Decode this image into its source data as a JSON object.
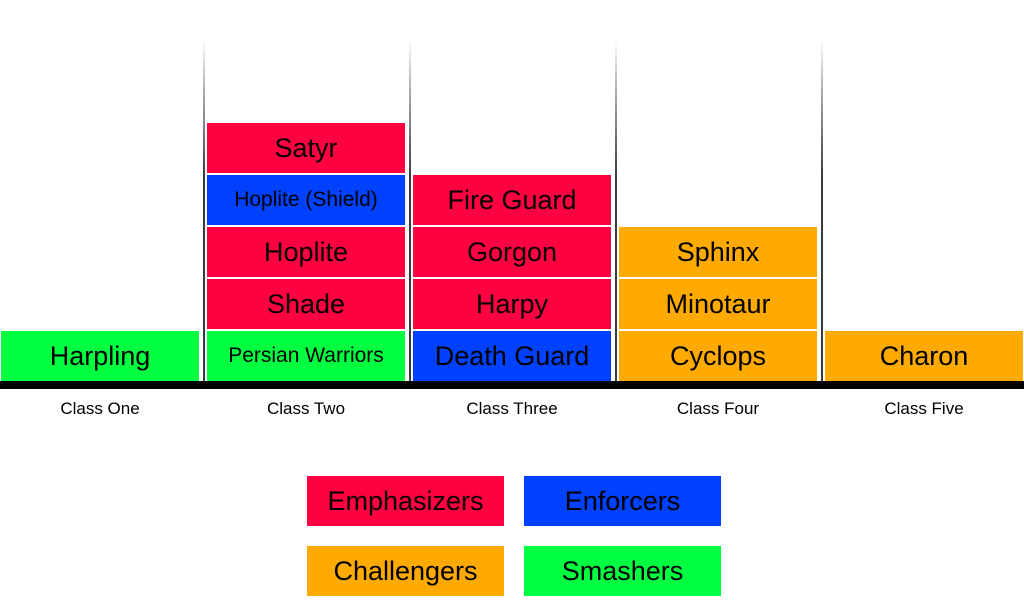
{
  "colors": {
    "emphasizers": "#ff0040",
    "enforcers": "#0040ff",
    "challengers": "#ffaa00",
    "smashers": "#00ff40"
  },
  "columns": [
    {
      "label": "Class One",
      "blocks": [
        {
          "name": "Harpling",
          "group": "smashers"
        }
      ]
    },
    {
      "label": "Class Two",
      "blocks": [
        {
          "name": "Persian Warriors",
          "group": "smashers"
        },
        {
          "name": "Shade",
          "group": "emphasizers"
        },
        {
          "name": "Hoplite",
          "group": "emphasizers"
        },
        {
          "name": "Hoplite (Shield)",
          "group": "enforcers"
        },
        {
          "name": "Satyr",
          "group": "emphasizers"
        }
      ]
    },
    {
      "label": "Class Three",
      "blocks": [
        {
          "name": "Death Guard",
          "group": "enforcers"
        },
        {
          "name": "Harpy",
          "group": "emphasizers"
        },
        {
          "name": "Gorgon",
          "group": "emphasizers"
        },
        {
          "name": "Fire Guard",
          "group": "emphasizers"
        }
      ]
    },
    {
      "label": "Class Four",
      "blocks": [
        {
          "name": "Cyclops",
          "group": "challengers"
        },
        {
          "name": "Minotaur",
          "group": "challengers"
        },
        {
          "name": "Sphinx",
          "group": "challengers"
        }
      ]
    },
    {
      "label": "Class Five",
      "blocks": [
        {
          "name": "Charon",
          "group": "challengers"
        }
      ]
    }
  ],
  "legend": [
    {
      "label": "Emphasizers",
      "group": "emphasizers"
    },
    {
      "label": "Enforcers",
      "group": "enforcers"
    },
    {
      "label": "Challengers",
      "group": "challengers"
    },
    {
      "label": "Smashers",
      "group": "smashers"
    }
  ]
}
